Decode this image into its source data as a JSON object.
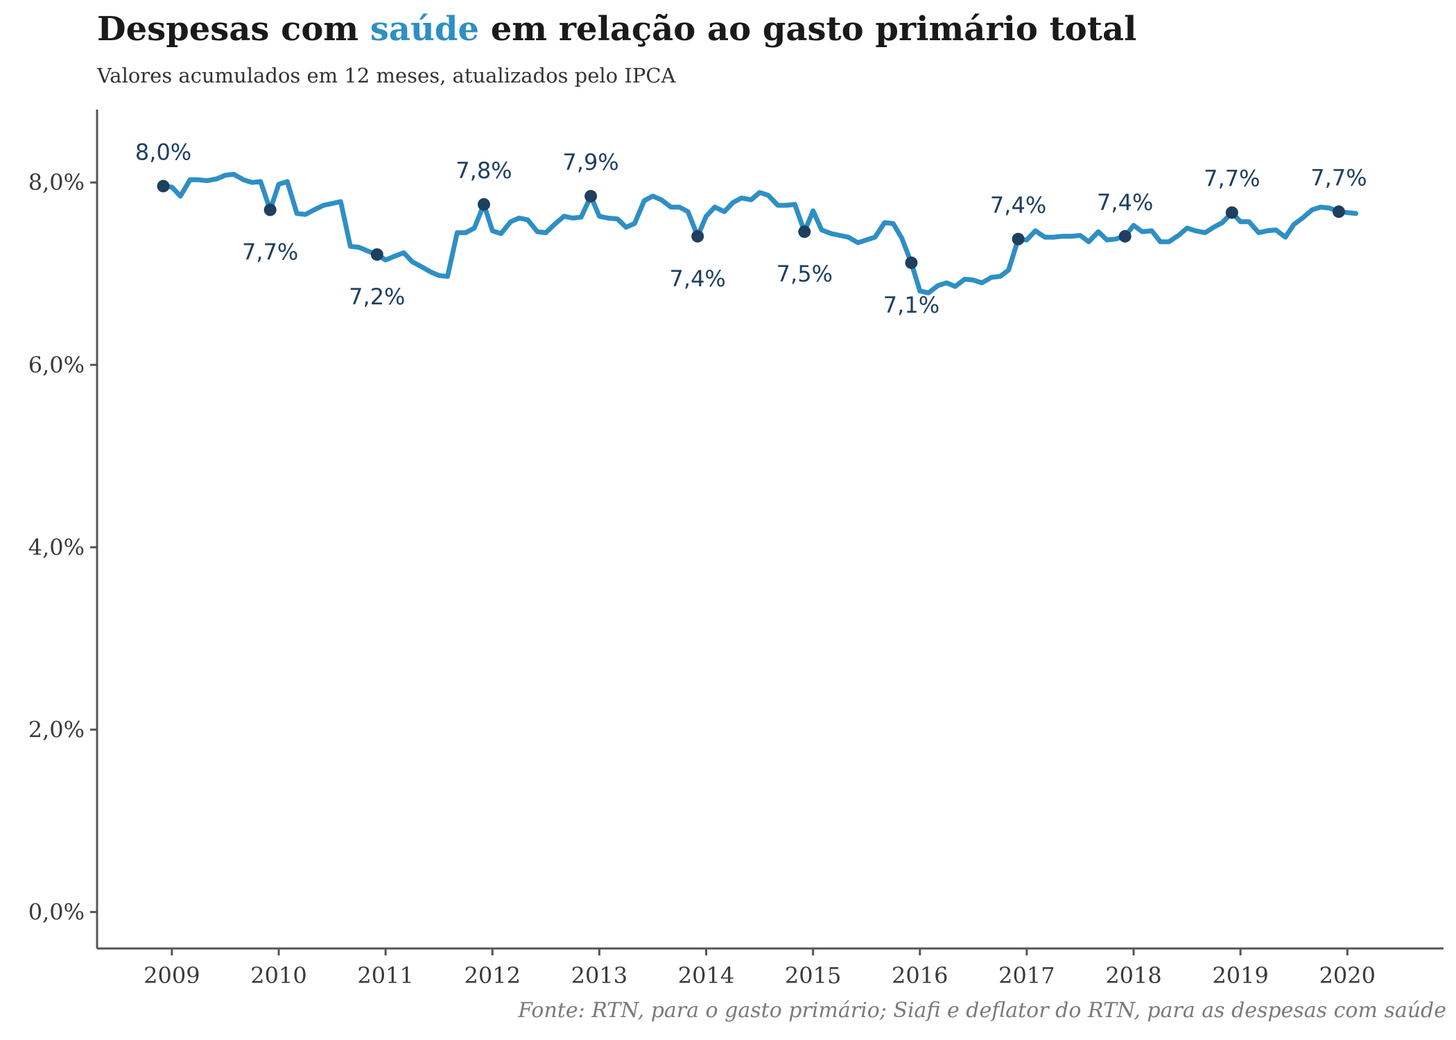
{
  "header": {
    "title_before": "Despesas com ",
    "title_highlight": "saúde",
    "title_after": " em relação ao gasto primário total",
    "subtitle": "Valores acumulados em 12 meses, atualizados pelo IPCA"
  },
  "footer": {
    "caption": "Fonte: RTN, para o gasto primário; Siafi e deflator do RTN, para as despesas com saúde"
  },
  "colors": {
    "line": "#2e8fc4",
    "point": "#1e3f5e",
    "axis": "#555555",
    "highlight": "#2e8fc4"
  },
  "chart_data": {
    "type": "line",
    "title": "Despesas com saúde em relação ao gasto primário total",
    "subtitle": "Valores acumulados em 12 meses, atualizados pelo IPCA",
    "xlabel": "",
    "ylabel": "",
    "ylim": [
      -0.4,
      8.8
    ],
    "xlim": [
      2008.3,
      2020.9
    ],
    "y_ticks": [
      0,
      2,
      4,
      6,
      8
    ],
    "y_tick_labels": [
      "0,0%",
      "2,0%",
      "4,0%",
      "6,0%",
      "8,0%"
    ],
    "x_ticks": [
      2009,
      2010,
      2011,
      2012,
      2013,
      2014,
      2015,
      2016,
      2017,
      2018,
      2019,
      2020
    ],
    "x_tick_labels": [
      "2009",
      "2010",
      "2011",
      "2012",
      "2013",
      "2014",
      "2015",
      "2016",
      "2017",
      "2018",
      "2019",
      "2020"
    ],
    "grid": false,
    "legend": "none",
    "series": [
      {
        "x": [
          2008.92,
          2009.0,
          2009.08,
          2009.17,
          2009.25,
          2009.33,
          2009.42,
          2009.5,
          2009.58,
          2009.67,
          2009.75,
          2009.83,
          2009.92,
          2010.0,
          2010.08,
          2010.17,
          2010.25,
          2010.33,
          2010.42,
          2010.5,
          2010.58,
          2010.67,
          2010.75,
          2010.83,
          2010.92,
          2011.0,
          2011.08,
          2011.17,
          2011.25,
          2011.33,
          2011.42,
          2011.5,
          2011.58,
          2011.67,
          2011.75,
          2011.83,
          2011.92,
          2012.0,
          2012.08,
          2012.17,
          2012.25,
          2012.33,
          2012.42,
          2012.5,
          2012.58,
          2012.67,
          2012.75,
          2012.83,
          2012.92,
          2013.0,
          2013.08,
          2013.17,
          2013.25,
          2013.33,
          2013.42,
          2013.5,
          2013.58,
          2013.67,
          2013.75,
          2013.83,
          2013.92,
          2014.0,
          2014.08,
          2014.17,
          2014.25,
          2014.33,
          2014.42,
          2014.5,
          2014.58,
          2014.67,
          2014.75,
          2014.83,
          2014.92,
          2015.0,
          2015.08,
          2015.17,
          2015.25,
          2015.33,
          2015.42,
          2015.5,
          2015.58,
          2015.67,
          2015.75,
          2015.83,
          2015.92,
          2016.0,
          2016.08,
          2016.17,
          2016.25,
          2016.33,
          2016.42,
          2016.5,
          2016.58,
          2016.67,
          2016.75,
          2016.83,
          2016.92,
          2017.0,
          2017.08,
          2017.17,
          2017.25,
          2017.33,
          2017.42,
          2017.5,
          2017.58,
          2017.67,
          2017.75,
          2017.83,
          2017.92,
          2018.0,
          2018.08,
          2018.17,
          2018.25,
          2018.33,
          2018.42,
          2018.5,
          2018.58,
          2018.67,
          2018.75,
          2018.83,
          2018.92,
          2019.0,
          2019.08,
          2019.17,
          2019.25,
          2019.33,
          2019.42,
          2019.5,
          2019.58,
          2019.67,
          2019.75,
          2019.83,
          2019.92,
          2020.0,
          2020.08
        ],
        "values": [
          7.96,
          7.95,
          7.85,
          8.03,
          8.03,
          8.02,
          8.04,
          8.08,
          8.09,
          8.03,
          8.0,
          8.01,
          7.7,
          7.98,
          8.01,
          7.66,
          7.65,
          7.7,
          7.75,
          7.77,
          7.79,
          7.3,
          7.29,
          7.25,
          7.21,
          7.15,
          7.19,
          7.23,
          7.13,
          7.08,
          7.02,
          6.98,
          6.97,
          7.45,
          7.45,
          7.5,
          7.76,
          7.47,
          7.44,
          7.57,
          7.61,
          7.59,
          7.46,
          7.45,
          7.54,
          7.63,
          7.61,
          7.62,
          7.85,
          7.63,
          7.61,
          7.6,
          7.51,
          7.55,
          7.8,
          7.85,
          7.81,
          7.73,
          7.73,
          7.68,
          7.41,
          7.63,
          7.73,
          7.68,
          7.78,
          7.83,
          7.81,
          7.89,
          7.86,
          7.75,
          7.75,
          7.76,
          7.46,
          7.69,
          7.48,
          7.44,
          7.42,
          7.4,
          7.34,
          7.37,
          7.4,
          7.56,
          7.55,
          7.39,
          7.12,
          6.81,
          6.79,
          6.87,
          6.9,
          6.86,
          6.94,
          6.93,
          6.9,
          6.96,
          6.97,
          7.04,
          7.38,
          7.37,
          7.47,
          7.4,
          7.4,
          7.41,
          7.41,
          7.42,
          7.35,
          7.46,
          7.37,
          7.38,
          7.41,
          7.53,
          7.46,
          7.47,
          7.35,
          7.35,
          7.42,
          7.5,
          7.47,
          7.45,
          7.51,
          7.56,
          7.67,
          7.57,
          7.57,
          7.45,
          7.47,
          7.48,
          7.4,
          7.54,
          7.61,
          7.7,
          7.73,
          7.72,
          7.68,
          7.67,
          7.66
        ]
      }
    ],
    "annotations": [
      {
        "x": 2008.92,
        "y": 7.96,
        "label": "8,0%",
        "pos": "above"
      },
      {
        "x": 2009.92,
        "y": 7.7,
        "label": "7,7%",
        "pos": "below"
      },
      {
        "x": 2010.92,
        "y": 7.21,
        "label": "7,2%",
        "pos": "below"
      },
      {
        "x": 2011.92,
        "y": 7.76,
        "label": "7,8%",
        "pos": "above"
      },
      {
        "x": 2012.92,
        "y": 7.85,
        "label": "7,9%",
        "pos": "above"
      },
      {
        "x": 2013.92,
        "y": 7.41,
        "label": "7,4%",
        "pos": "below"
      },
      {
        "x": 2014.92,
        "y": 7.46,
        "label": "7,5%",
        "pos": "below"
      },
      {
        "x": 2015.92,
        "y": 7.12,
        "label": "7,1%",
        "pos": "below"
      },
      {
        "x": 2016.92,
        "y": 7.38,
        "label": "7,4%",
        "pos": "above"
      },
      {
        "x": 2017.92,
        "y": 7.41,
        "label": "7,4%",
        "pos": "above"
      },
      {
        "x": 2018.92,
        "y": 7.67,
        "label": "7,7%",
        "pos": "above"
      },
      {
        "x": 2019.92,
        "y": 7.68,
        "label": "7,7%",
        "pos": "above"
      }
    ]
  }
}
